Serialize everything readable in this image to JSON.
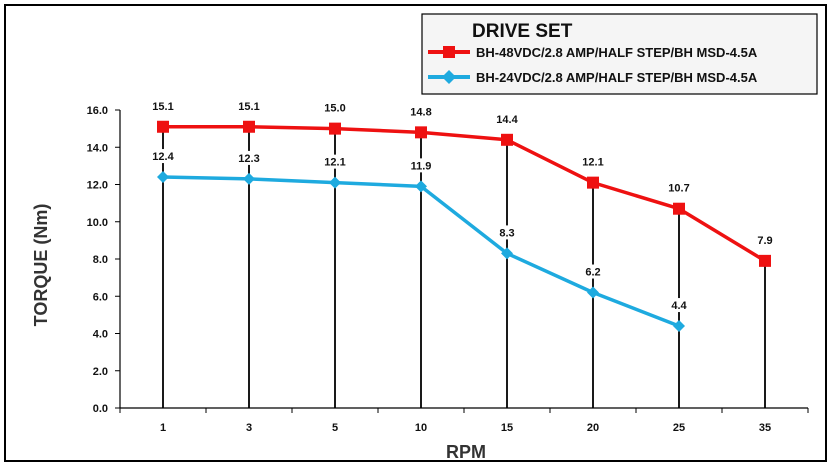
{
  "chart_data": {
    "type": "line",
    "title": "",
    "xlabel": "RPM",
    "ylabel": "TORQUE (Nm)",
    "categories": [
      "1",
      "3",
      "5",
      "10",
      "15",
      "20",
      "25",
      "35"
    ],
    "ylim": [
      0,
      16
    ],
    "yticks": [
      "0.0",
      "2.0",
      "4.0",
      "6.0",
      "8.0",
      "10.0",
      "12.0",
      "14.0",
      "16.0"
    ],
    "grid": false,
    "legend": {
      "title": "DRIVE SET",
      "position": "top-right"
    },
    "series": [
      {
        "name": "BH-48VDC/2.8 AMP/HALF STEP/BH MSD-4.5A",
        "color": "#ee1111",
        "marker": "square",
        "values": [
          15.1,
          15.1,
          15.0,
          14.8,
          14.4,
          12.1,
          10.7,
          7.9
        ],
        "labels": [
          "15.1",
          "15.1",
          "15.0",
          "14.8",
          "14.4",
          "12.1",
          "10.7",
          "7.9"
        ]
      },
      {
        "name": "BH-24VDC/2.8 AMP/HALF STEP/BH MSD-4.5A",
        "color": "#1eaadf",
        "marker": "diamond",
        "values": [
          12.4,
          12.3,
          12.1,
          11.9,
          8.3,
          6.2,
          4.4,
          null
        ],
        "labels": [
          "12.4",
          "12.3",
          "12.1",
          "11.9",
          "8.3",
          "6.2",
          "4.4",
          ""
        ]
      }
    ]
  }
}
